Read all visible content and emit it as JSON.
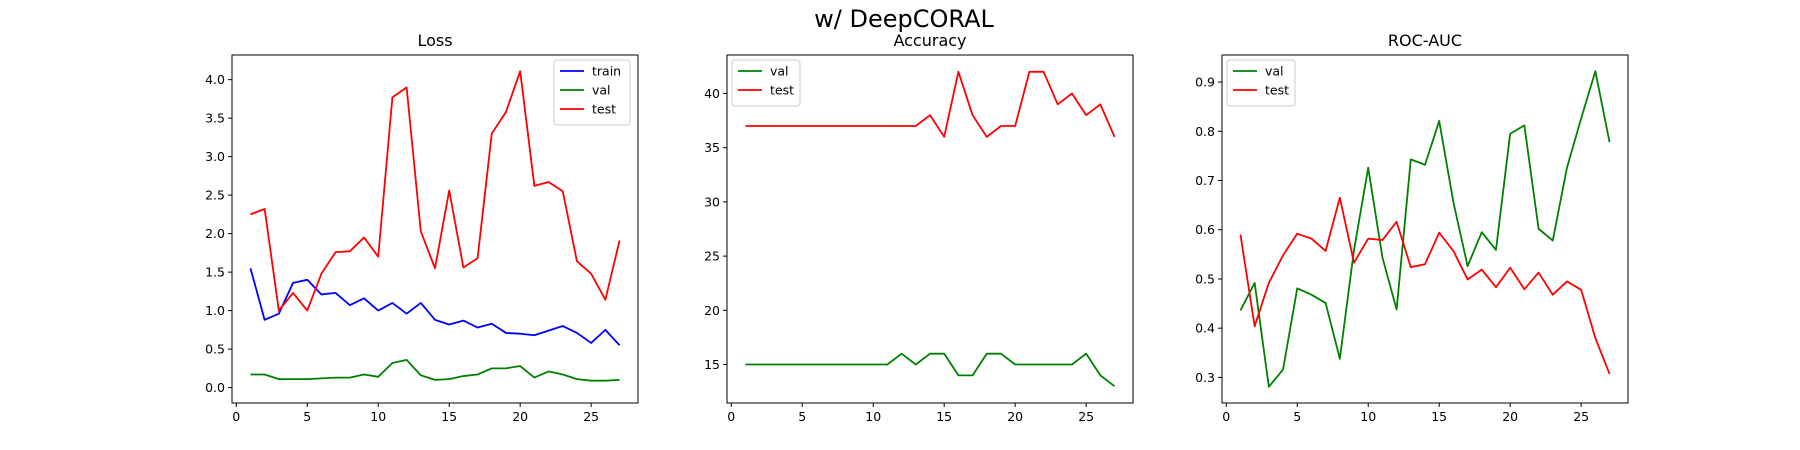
{
  "figure": {
    "suptitle": "w/ DeepCORAL"
  },
  "chart_data": [
    {
      "type": "line",
      "title": "Loss",
      "xlabel": "",
      "ylabel": "",
      "xlim": [
        -0.3,
        28.3
      ],
      "ylim": [
        -0.2,
        4.32
      ],
      "xticks": [
        0,
        5,
        10,
        15,
        20,
        25
      ],
      "yticks": [
        0.0,
        0.5,
        1.0,
        1.5,
        2.0,
        2.5,
        3.0,
        3.5,
        4.0
      ],
      "ytick_decimals": 1,
      "legend_position": "upper right",
      "grid": false,
      "x": [
        1,
        2,
        3,
        4,
        5,
        6,
        7,
        8,
        9,
        10,
        11,
        12,
        13,
        14,
        15,
        16,
        17,
        18,
        19,
        20,
        21,
        22,
        23,
        24,
        25,
        26,
        27
      ],
      "series": [
        {
          "name": "train",
          "color": "#0000ff",
          "values": [
            1.55,
            0.88,
            0.96,
            1.36,
            1.4,
            1.21,
            1.23,
            1.07,
            1.16,
            1.0,
            1.1,
            0.96,
            1.1,
            0.88,
            0.82,
            0.87,
            0.78,
            0.83,
            0.71,
            0.7,
            0.68,
            0.74,
            0.8,
            0.71,
            0.58,
            0.75,
            0.55
          ]
        },
        {
          "name": "val",
          "color": "#008000",
          "values": [
            0.17,
            0.17,
            0.11,
            0.11,
            0.11,
            0.12,
            0.13,
            0.13,
            0.17,
            0.14,
            0.32,
            0.36,
            0.16,
            0.1,
            0.11,
            0.15,
            0.17,
            0.25,
            0.25,
            0.28,
            0.13,
            0.21,
            0.17,
            0.11,
            0.09,
            0.09,
            0.1
          ]
        },
        {
          "name": "test",
          "color": "#ff0000",
          "values": [
            2.25,
            2.32,
            1.0,
            1.23,
            1.0,
            1.48,
            1.76,
            1.77,
            1.95,
            1.7,
            3.77,
            3.9,
            2.03,
            1.55,
            2.56,
            1.56,
            1.68,
            3.3,
            3.58,
            4.11,
            2.62,
            2.67,
            2.55,
            1.64,
            1.48,
            1.14,
            1.91
          ]
        }
      ]
    },
    {
      "type": "line",
      "title": "Accuracy",
      "xlabel": "",
      "ylabel": "",
      "xlim": [
        -0.3,
        28.3
      ],
      "ylim": [
        11.45,
        43.55
      ],
      "xticks": [
        0,
        5,
        10,
        15,
        20,
        25
      ],
      "yticks": [
        15,
        20,
        25,
        30,
        35,
        40
      ],
      "ytick_decimals": 0,
      "legend_position": "upper left",
      "grid": false,
      "x": [
        1,
        2,
        3,
        4,
        5,
        6,
        7,
        8,
        9,
        10,
        11,
        12,
        13,
        14,
        15,
        16,
        17,
        18,
        19,
        20,
        21,
        22,
        23,
        24,
        25,
        26,
        27
      ],
      "series": [
        {
          "name": "val",
          "color": "#008000",
          "values": [
            15,
            15,
            15,
            15,
            15,
            15,
            15,
            15,
            15,
            15,
            15,
            16,
            15,
            16,
            16,
            14,
            14,
            16,
            16,
            15,
            15,
            15,
            15,
            15,
            16,
            14,
            13
          ]
        },
        {
          "name": "test",
          "color": "#ff0000",
          "values": [
            37,
            37,
            37,
            37,
            37,
            37,
            37,
            37,
            37,
            37,
            37,
            37,
            37,
            38,
            36,
            42,
            38,
            36,
            37,
            37,
            42,
            42,
            39,
            40,
            38,
            39,
            36
          ]
        }
      ]
    },
    {
      "type": "line",
      "title": "ROC-AUC",
      "xlabel": "",
      "ylabel": "",
      "xlim": [
        -0.3,
        28.3
      ],
      "ylim": [
        0.248,
        0.955
      ],
      "xticks": [
        0,
        5,
        10,
        15,
        20,
        25
      ],
      "yticks": [
        0.3,
        0.4,
        0.5,
        0.6,
        0.7,
        0.8,
        0.9
      ],
      "ytick_decimals": 1,
      "legend_position": "upper left",
      "grid": false,
      "x": [
        1,
        2,
        3,
        4,
        5,
        6,
        7,
        8,
        9,
        10,
        11,
        12,
        13,
        14,
        15,
        16,
        17,
        18,
        19,
        20,
        21,
        22,
        23,
        24,
        25,
        26,
        27
      ],
      "series": [
        {
          "name": "val",
          "color": "#008000",
          "values": [
            0.436,
            0.492,
            0.281,
            0.316,
            0.481,
            0.468,
            0.451,
            0.338,
            0.559,
            0.726,
            0.544,
            0.438,
            0.743,
            0.732,
            0.821,
            0.656,
            0.526,
            0.595,
            0.559,
            0.795,
            0.812,
            0.602,
            0.578,
            0.726,
            0.826,
            0.922,
            0.778
          ]
        },
        {
          "name": "test",
          "color": "#ff0000",
          "values": [
            0.59,
            0.404,
            0.492,
            0.548,
            0.592,
            0.582,
            0.557,
            0.665,
            0.533,
            0.582,
            0.579,
            0.616,
            0.524,
            0.53,
            0.594,
            0.557,
            0.499,
            0.519,
            0.483,
            0.523,
            0.479,
            0.513,
            0.468,
            0.495,
            0.478,
            0.38,
            0.307
          ]
        }
      ]
    }
  ]
}
